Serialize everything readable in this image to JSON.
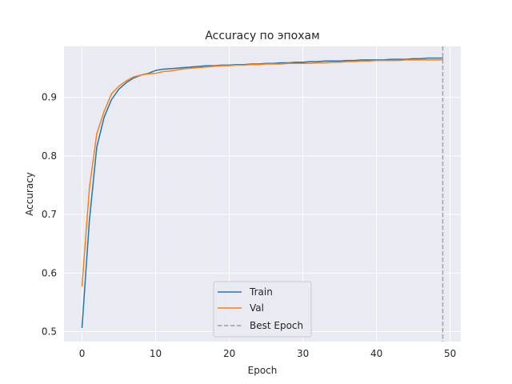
{
  "chart_data": {
    "type": "line",
    "title": "Accuracy по эпохам",
    "xlabel": "Epoch",
    "ylabel": "Accuracy",
    "xlim": [
      -2.45,
      51.45
    ],
    "ylim": [
      0.483,
      0.987
    ],
    "xticks": [
      0,
      10,
      20,
      30,
      40,
      50
    ],
    "yticks": [
      0.5,
      0.6,
      0.7,
      0.8,
      0.9
    ],
    "ytick_labels": [
      "0.5",
      "0.6",
      "0.7",
      "0.8",
      "0.9"
    ],
    "grid": true,
    "legend_location": "lower-center",
    "x": [
      0,
      1,
      2,
      3,
      4,
      5,
      6,
      7,
      8,
      9,
      10,
      11,
      12,
      13,
      14,
      15,
      16,
      17,
      18,
      19,
      20,
      21,
      22,
      23,
      24,
      25,
      26,
      27,
      28,
      29,
      30,
      31,
      32,
      33,
      34,
      35,
      36,
      37,
      38,
      39,
      40,
      41,
      42,
      43,
      44,
      45,
      46,
      47,
      48,
      49
    ],
    "series": [
      {
        "name": "Train",
        "color": "#1f77b4",
        "values": [
          0.507,
          0.69,
          0.815,
          0.866,
          0.896,
          0.914,
          0.925,
          0.933,
          0.938,
          0.941,
          0.946,
          0.948,
          0.949,
          0.95,
          0.951,
          0.952,
          0.953,
          0.954,
          0.954,
          0.955,
          0.955,
          0.956,
          0.956,
          0.957,
          0.957,
          0.958,
          0.958,
          0.959,
          0.959,
          0.96,
          0.96,
          0.961,
          0.961,
          0.962,
          0.962,
          0.962,
          0.963,
          0.963,
          0.964,
          0.964,
          0.964,
          0.964,
          0.965,
          0.965,
          0.965,
          0.966,
          0.966,
          0.967,
          0.967,
          0.967
        ]
      },
      {
        "name": "Val",
        "color": "#ff7f0e",
        "values": [
          0.578,
          0.745,
          0.838,
          0.876,
          0.906,
          0.919,
          0.928,
          0.935,
          0.938,
          0.94,
          0.941,
          0.944,
          0.945,
          0.947,
          0.949,
          0.95,
          0.951,
          0.952,
          0.953,
          0.954,
          0.954,
          0.955,
          0.955,
          0.956,
          0.956,
          0.957,
          0.957,
          0.957,
          0.958,
          0.958,
          0.958,
          0.958,
          0.959,
          0.959,
          0.96,
          0.96,
          0.961,
          0.961,
          0.962,
          0.962,
          0.963,
          0.963,
          0.963,
          0.963,
          0.964,
          0.964,
          0.964,
          0.964,
          0.964,
          0.964
        ]
      }
    ],
    "best_epoch": {
      "name": "Best Epoch",
      "x": 49,
      "color": "#a0a0a0"
    }
  }
}
